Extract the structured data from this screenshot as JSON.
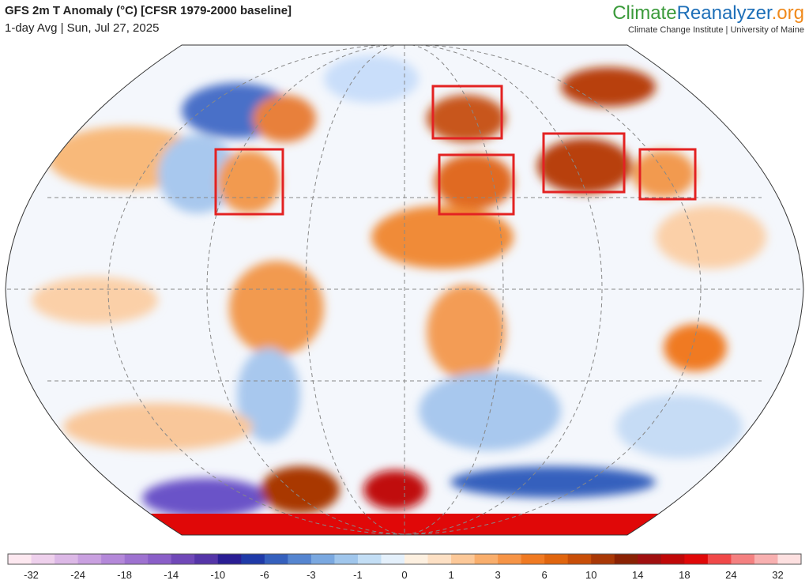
{
  "header": {
    "title": "GFS 2m T Anomaly (°C) [CFSR 1979-2000 baseline]",
    "subtitle": "1-day Avg | Sun, Jul 27, 2025"
  },
  "brand": {
    "part1": "Climate",
    "part2": "Reanalyzer",
    "part3": ".org",
    "tagline": "Climate Change Institute | University of Maine"
  },
  "legend": {
    "colors": [
      "#fde8f0",
      "#eed0ec",
      "#dcb8e6",
      "#c9a0e0",
      "#b488d9",
      "#9e72d0",
      "#8a5fc8",
      "#7048b8",
      "#5535a8",
      "#2a1e94",
      "#1f3aa8",
      "#3560bd",
      "#5585d0",
      "#7aa8e0",
      "#a0c6ec",
      "#c3def5",
      "#e4f0fb",
      "#fdf0e0",
      "#fde0c4",
      "#fcc898",
      "#f9ae6c",
      "#f69446",
      "#f07a22",
      "#e0650e",
      "#c84e08",
      "#a93806",
      "#8a2204",
      "#a01010",
      "#c00808",
      "#e00808",
      "#f04848",
      "#f48080",
      "#f8b0b0",
      "#fde0e0"
    ],
    "ticks": [
      -32,
      -24,
      -18,
      -14,
      -10,
      -6,
      -3,
      -1,
      0,
      1,
      3,
      6,
      10,
      14,
      18,
      24,
      32
    ]
  }
}
